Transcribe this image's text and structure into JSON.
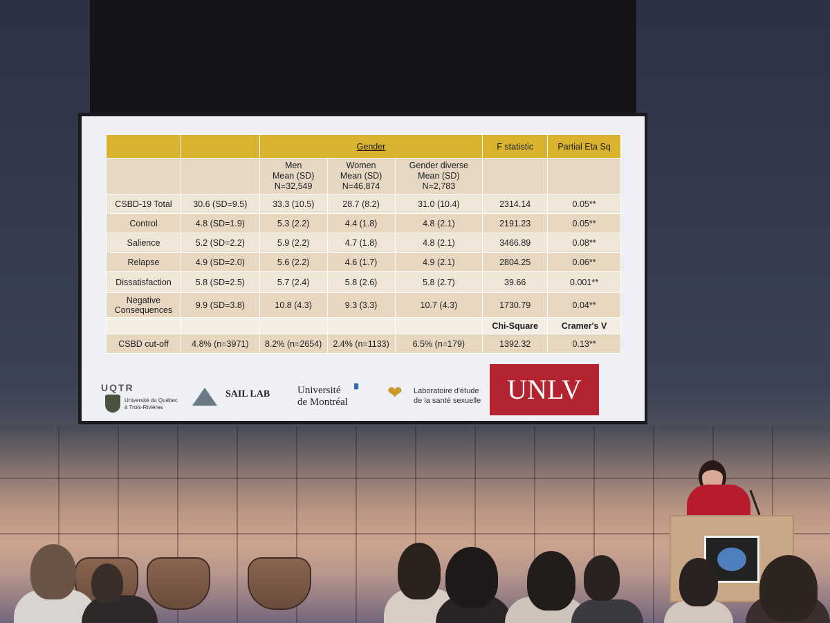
{
  "slide": {
    "table": {
      "header": {
        "gender_label": "Gender",
        "f_statistic_label": "F statistic",
        "partial_eta_label": "Partial Eta Sq"
      },
      "subheader": {
        "men": [
          "Men",
          "Mean (SD)",
          "N=32,549"
        ],
        "women": [
          "Women",
          "Mean (SD)",
          "N=46,874"
        ],
        "diverse": [
          "Gender diverse",
          "Mean (SD)",
          "N=2,783"
        ]
      },
      "rows": [
        {
          "label": "CSBD-19 Total",
          "overall": "30.6 (SD=9.5)",
          "men": "33.3 (10.5)",
          "women": "28.7 (8.2)",
          "diverse": "31.0 (10.4)",
          "stat": "2314.14",
          "effect": "0.05**"
        },
        {
          "label": "Control",
          "overall": "4.8 (SD=1.9)",
          "men": "5.3 (2.2)",
          "women": "4.4 (1.8)",
          "diverse": "4.8 (2.1)",
          "stat": "2191.23",
          "effect": "0.05**"
        },
        {
          "label": "Salience",
          "overall": "5.2 (SD=2.2)",
          "men": "5.9 (2.2)",
          "women": "4.7 (1.8)",
          "diverse": "4.8 (2.1)",
          "stat": "3466.89",
          "effect": "0.08**"
        },
        {
          "label": "Relapse",
          "overall": "4.9 (SD=2.0)",
          "men": "5.6 (2.2)",
          "women": "4.6 (1.7)",
          "diverse": "4.9 (2.1)",
          "stat": "2804.25",
          "effect": "0.06**"
        },
        {
          "label": "Dissatisfaction",
          "overall": "5.8 (SD=2.5)",
          "men": "5.7 (2.4)",
          "women": "5.8 (2.6)",
          "diverse": "5.8 (2.7)",
          "stat": "39.66",
          "effect": "0.001**"
        },
        {
          "label": "Negative Consequences",
          "overall": "9.9 (SD=3.8)",
          "men": "10.8 (4.3)",
          "women": "9.3 (3.3)",
          "diverse": "10.7 (4.3)",
          "stat": "1730.79",
          "effect": "0.04**"
        }
      ],
      "chi_header": {
        "stat": "Chi-Square",
        "effect": "Cramer's V"
      },
      "cutoff_row": {
        "label": "CSBD cut-off",
        "overall": "4.8% (n=3971)",
        "men": "8.2% (n=2654)",
        "women": "2.4% (n=1133)",
        "diverse": "6.5% (n=179)",
        "stat": "1392.32",
        "effect": "0.13**"
      }
    },
    "logos": {
      "uqtr_word": "UQTR",
      "uqtr_line1": "Université du Québec",
      "uqtr_line2": "à Trois-Rivières",
      "sail_lab": "SAIL LAB",
      "udem_line1": "Université",
      "udem_line2": "de Montréal",
      "lab_line1": "Laboratoire d'étude",
      "lab_line2": "de la santé sexuelle",
      "unlv": "UNLV"
    }
  }
}
